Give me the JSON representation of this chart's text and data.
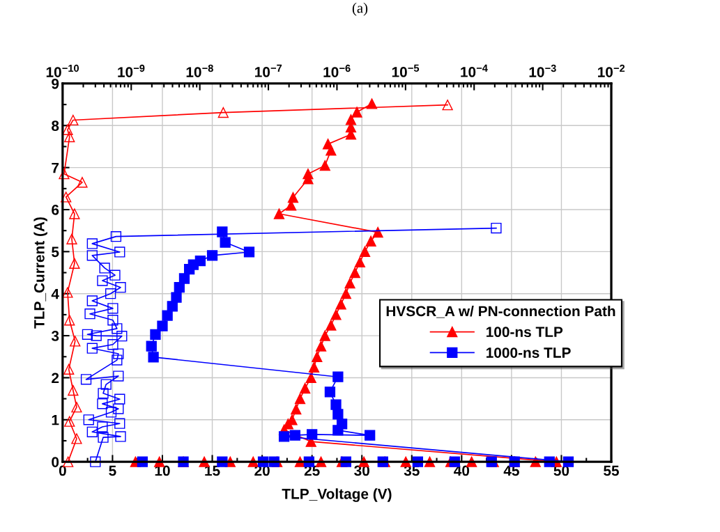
{
  "chart_data": {
    "type": "line",
    "annotations": [
      "(a)"
    ],
    "xlabel": "TLP_Voltage (V)",
    "ylabel": "TLP_Current (A)",
    "legend_title": "HVSCR_A w/ PN-connection Path",
    "xlim": [
      0,
      55
    ],
    "xticks": [
      0,
      5,
      10,
      15,
      20,
      25,
      30,
      35,
      40,
      45,
      50,
      55
    ],
    "ylim": [
      0,
      9
    ],
    "yticks": [
      0,
      1,
      2,
      3,
      4,
      5,
      6,
      7,
      8,
      9
    ],
    "x2lim": [
      1e-10,
      0.01
    ],
    "x2ticks": [
      {
        "value": 1e-10,
        "label": "10$^{−10}$"
      },
      {
        "value": 1e-09,
        "label": "10$^{−9}$"
      },
      {
        "value": 1e-08,
        "label": "10$^{−8}$"
      },
      {
        "value": 1e-07,
        "label": "10$^{−7}$"
      },
      {
        "value": 1e-06,
        "label": "10$^{−6}$"
      },
      {
        "value": 1e-05,
        "label": "10$^{−5}$"
      },
      {
        "value": 0.0001,
        "label": "10$^{−4}$"
      },
      {
        "value": 0.001,
        "label": "10$^{−3}$"
      },
      {
        "value": 0.01,
        "label": "10$^{−2}$"
      }
    ],
    "log": "x2",
    "grid": true,
    "legend": "right",
    "line_style": "solid",
    "series": [
      {
        "name": "100-ns TLP",
        "color": "#ff0000",
        "marker": "triangle",
        "x": [
          7.3,
          9.7,
          12.1,
          14.2,
          16.8,
          19.1,
          21.5,
          23.8,
          25.9,
          28.0,
          30.2,
          32.3,
          34.4,
          36.8,
          38.9,
          41.0,
          43.2,
          45.3,
          47.4,
          49.5,
          24.9,
          22.2,
          22.6,
          23.0,
          23.4,
          23.8,
          24.3,
          24.9,
          25.2,
          25.5,
          25.9,
          26.3,
          26.9,
          27.4,
          27.9,
          28.4,
          28.8,
          29.3,
          29.8,
          30.3,
          30.9,
          31.6,
          21.7,
          22.9,
          23.1,
          24.6,
          24.6,
          26.3,
          26.9,
          26.6,
          28.9,
          28.9,
          28.9,
          29.5,
          31.0
        ],
        "values": [
          0,
          0,
          0,
          0,
          0,
          0,
          0,
          0,
          0,
          0,
          0,
          0,
          0,
          0,
          0,
          0,
          0,
          0,
          0,
          0,
          0.48,
          0.76,
          0.9,
          1.0,
          1.25,
          1.5,
          1.75,
          2.0,
          2.25,
          2.5,
          2.75,
          3.0,
          3.25,
          3.5,
          3.75,
          4.0,
          4.25,
          4.5,
          4.75,
          5.0,
          5.25,
          5.46,
          5.9,
          6.1,
          6.29,
          6.73,
          6.85,
          7.05,
          7.41,
          7.56,
          7.79,
          7.96,
          8.14,
          8.32,
          8.52
        ]
      },
      {
        "name": "1000-ns TLP",
        "color": "#0000ff",
        "marker": "square",
        "x": [
          8.0,
          12.1,
          16.0,
          20.1,
          21.2,
          24.7,
          28.4,
          32.1,
          35.6,
          39.3,
          43.0,
          45.3,
          48.8,
          50.7,
          22.2,
          23.3,
          25.0,
          30.8,
          27.6,
          28.0,
          27.6,
          27.4,
          26.8,
          27.6,
          9.1,
          8.9,
          9.3,
          10.0,
          10.5,
          11.0,
          11.4,
          11.7,
          12.2,
          12.7,
          13.1,
          13.8,
          15.0,
          18.7,
          16.3,
          16.0
        ],
        "values": [
          0,
          0,
          0,
          0,
          0,
          0,
          0,
          0,
          0,
          0,
          0,
          0,
          0,
          0,
          0.6,
          0.63,
          0.65,
          0.63,
          0.75,
          0.9,
          1.13,
          1.36,
          1.66,
          2.02,
          2.49,
          2.75,
          3.03,
          3.23,
          3.48,
          3.7,
          3.91,
          4.15,
          4.36,
          4.58,
          4.69,
          4.78,
          4.91,
          4.99,
          5.22,
          5.47
        ]
      },
      {
        "color": "#ff0000",
        "marker": "triangle",
        "axis": "x2",
        "x": [
          1.2e-10,
          1.6e-10,
          1.26e-10,
          1.6e-10,
          1.42e-10,
          1.23e-10,
          1.52e-10,
          1.26e-10,
          1.18e-10,
          1.49e-10,
          1.36e-10,
          1.49e-10,
          1.12e-10,
          1.93e-10,
          1.05e-10,
          1.26e-10,
          1.18e-10,
          1.42e-10,
          2.2e-08,
          4.1e-05
        ],
        "values": [
          0,
          0.55,
          0.96,
          1.3,
          1.7,
          2.2,
          2.87,
          3.37,
          4.03,
          4.72,
          5.3,
          5.9,
          6.3,
          6.65,
          6.85,
          7.73,
          7.9,
          8.13,
          8.31,
          8.49
        ]
      },
      {
        "color": "#0000ff",
        "marker": "square",
        "axis": "x2",
        "x": [
          3e-10,
          3.9e-10,
          7e-10,
          2.7e-10,
          3.8e-10,
          6.8e-10,
          2.4e-10,
          5.1e-10,
          6.5e-10,
          3.8e-10,
          6.8e-10,
          3.9e-10,
          4.3e-10,
          6.5e-10,
          2.2e-10,
          6.2e-10,
          6.5e-10,
          2.7e-10,
          5.4e-10,
          7.3e-10,
          3.1e-10,
          2.3e-10,
          6.2e-10,
          5.4e-10,
          2.5e-10,
          5.4e-10,
          2.7e-10,
          5e-10,
          7e-10,
          3.8e-10,
          5.8e-10,
          4.1e-10,
          2.7e-10,
          6.8e-10,
          2.7e-10,
          6e-10,
          0.00021
        ],
        "values": [
          0,
          0.58,
          0.6,
          0.71,
          0.83,
          0.91,
          1.0,
          1.18,
          1.26,
          1.38,
          1.49,
          1.63,
          1.84,
          2.04,
          1.96,
          2.42,
          2.57,
          2.7,
          2.79,
          2.99,
          3.0,
          3.03,
          3.17,
          3.37,
          3.52,
          3.65,
          3.83,
          4.0,
          4.15,
          4.31,
          4.44,
          4.61,
          4.91,
          4.99,
          5.19,
          5.36,
          5.56
        ]
      }
    ]
  }
}
